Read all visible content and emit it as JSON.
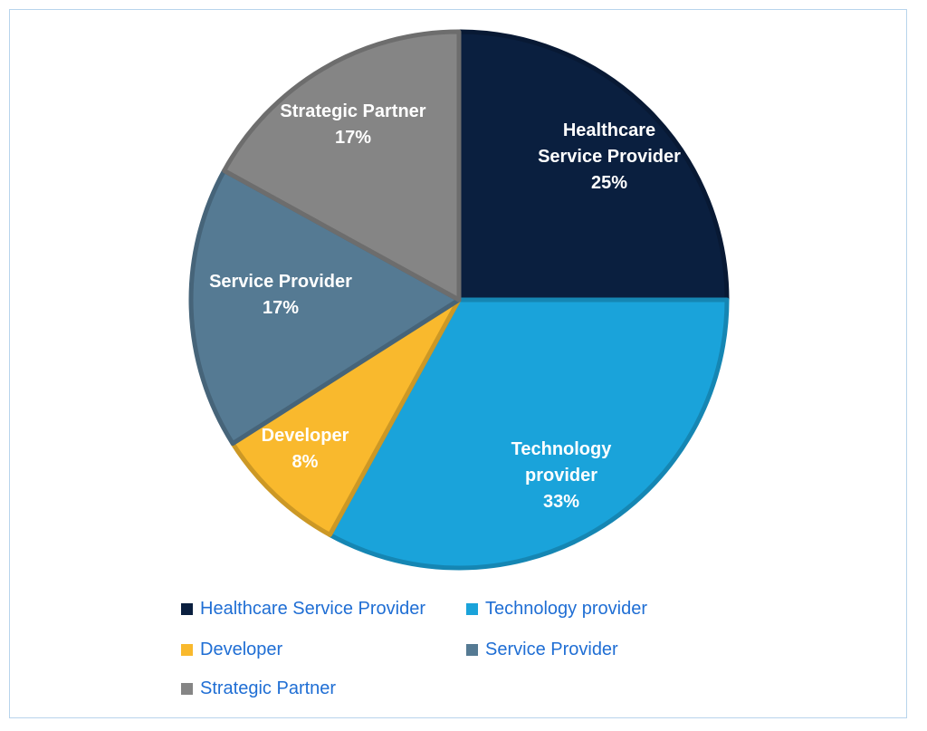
{
  "chart_data": {
    "type": "pie",
    "slices": [
      {
        "name": "Healthcare Service Provider",
        "label_lines": [
          "Healthcare",
          "Service Provider"
        ],
        "value": 25,
        "value_label": "25%",
        "color": "#0a1f3f"
      },
      {
        "name": "Technology provider",
        "label_lines": [
          "Technology",
          "provider"
        ],
        "value": 33,
        "value_label": "33%",
        "color": "#1aa3da"
      },
      {
        "name": "Developer",
        "label_lines": [
          "Developer"
        ],
        "value": 8,
        "value_label": "8%",
        "color": "#f9b92d"
      },
      {
        "name": "Service Provider",
        "label_lines": [
          "Service Provider"
        ],
        "value": 17,
        "value_label": "17%",
        "color": "#557a93"
      },
      {
        "name": "Strategic Partner",
        "label_lines": [
          "Strategic Partner"
        ],
        "value": 17,
        "value_label": "17%",
        "color": "#858585"
      }
    ],
    "legend": {
      "position": "bottom",
      "items": [
        {
          "label": "Healthcare Service Provider",
          "color": "#0a1f3f"
        },
        {
          "label": "Technology provider",
          "color": "#1aa3da"
        },
        {
          "label": "Developer",
          "color": "#f9b92d"
        },
        {
          "label": "Service Provider",
          "color": "#557a93"
        },
        {
          "label": "Strategic Partner",
          "color": "#858585"
        }
      ]
    }
  }
}
